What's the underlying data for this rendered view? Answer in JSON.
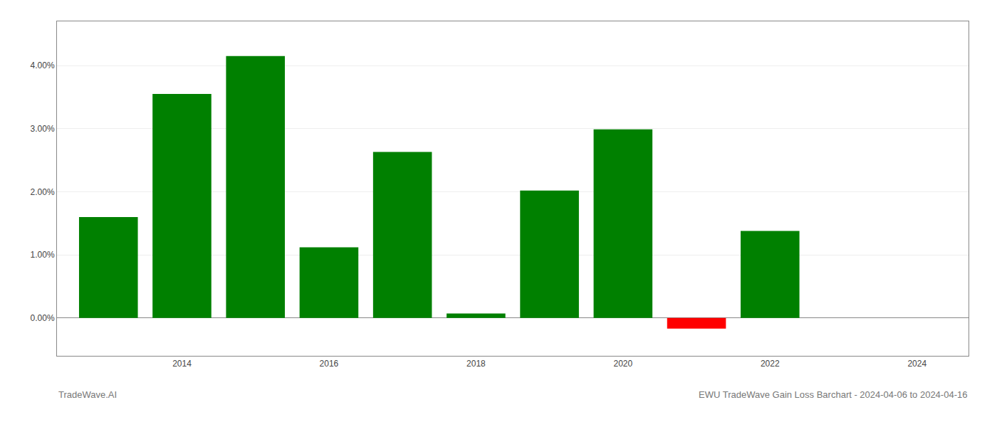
{
  "chart_data": {
    "type": "bar",
    "title": "EWU TradeWave Gain Loss Barchart - 2024-04-06 to 2024-04-16",
    "annotations": [
      "TradeWave.AI"
    ],
    "x": [
      2013,
      2014,
      2015,
      2016,
      2017,
      2018,
      2019,
      2020,
      2021,
      2022
    ],
    "values": [
      0.016,
      0.0355,
      0.0415,
      0.0112,
      0.0263,
      0.0007,
      0.0202,
      0.0299,
      -0.0017,
      0.0138
    ],
    "colors": [
      "#008000",
      "#008000",
      "#008000",
      "#008000",
      "#008000",
      "#008000",
      "#008000",
      "#008000",
      "#ff0000",
      "#008000"
    ],
    "xlim": [
      2012.3,
      2024.7
    ],
    "xticks": [
      2014,
      2016,
      2018,
      2020,
      2022,
      2024
    ],
    "ylim": [
      -0.006,
      0.047
    ],
    "yticks": [
      {
        "value": 0.0,
        "label": "0.00%"
      },
      {
        "value": 0.01,
        "label": "1.00%"
      },
      {
        "value": 0.02,
        "label": "2.00%"
      },
      {
        "value": 0.03,
        "label": "3.00%"
      },
      {
        "value": 0.04,
        "label": "4.00%"
      }
    ],
    "grid": true
  }
}
